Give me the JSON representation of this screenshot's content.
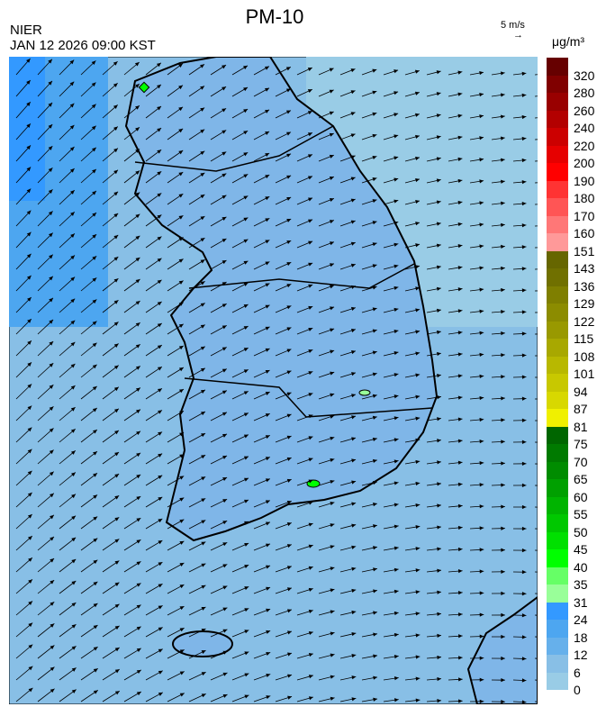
{
  "header": {
    "title": "PM-10",
    "organization": "NIER",
    "timestamp": "JAN 12 2026 09:00 KST",
    "wind_scale_label": "5 m/s",
    "wind_scale_arrow": "→",
    "unit": "μg/m³"
  },
  "colorbar": {
    "labels": [
      "320",
      "280",
      "260",
      "240",
      "220",
      "200",
      "190",
      "180",
      "170",
      "160",
      "151",
      "143",
      "136",
      "129",
      "122",
      "115",
      "108",
      "101",
      "94",
      "87",
      "81",
      "75",
      "70",
      "65",
      "60",
      "55",
      "50",
      "45",
      "40",
      "35",
      "31",
      "24",
      "18",
      "12",
      "6",
      "0"
    ],
    "colors": [
      "#660000",
      "#800000",
      "#990000",
      "#b30000",
      "#cc0000",
      "#e60000",
      "#ff0000",
      "#ff3333",
      "#ff5555",
      "#ff7777",
      "#ff9999",
      "#666600",
      "#707000",
      "#7f7f00",
      "#8c8c00",
      "#999900",
      "#a8a800",
      "#b8b800",
      "#c8c800",
      "#d8d800",
      "#f0f000",
      "#006600",
      "#007a00",
      "#008c00",
      "#00a000",
      "#00b400",
      "#00c800",
      "#00e000",
      "#00ff00",
      "#66ff66",
      "#99ff99",
      "#3399ff",
      "#4da6f0",
      "#66b0eb",
      "#88bfe6",
      "#99cce6"
    ]
  },
  "map": {
    "background_color": "#88bfe6",
    "land_color": "#7fb6e8",
    "hotspot_color": "#00ff00"
  }
}
